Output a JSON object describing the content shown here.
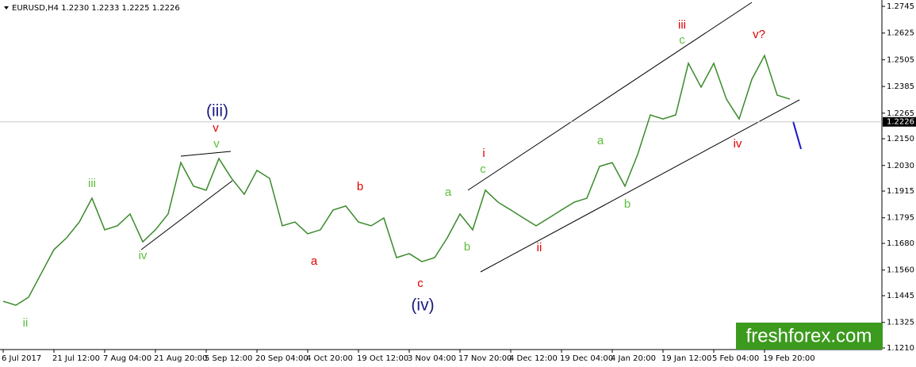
{
  "chart_data": {
    "type": "line",
    "title": "EURUSD,H4  1.2230 1.2233 1.2225 1.2226",
    "categories": [
      "6 Jul 2017",
      null,
      null,
      null,
      "21 Jul 12:00",
      null,
      null,
      null,
      "7 Aug 04:00",
      null,
      null,
      null,
      "21 Aug 20:00",
      null,
      null,
      null,
      "5 Sep 12:00",
      null,
      null,
      null,
      "20 Sep 04:00",
      null,
      null,
      null,
      "4 Oct 20:00",
      null,
      null,
      null,
      "19 Oct 12:00",
      null,
      null,
      null,
      "3 Nov 04:00",
      null,
      null,
      null,
      "17 Nov 20:00",
      null,
      null,
      null,
      "4 Dec 12:00",
      null,
      null,
      null,
      "19 Dec 04:00",
      null,
      null,
      null,
      "4 Jan 20:00",
      null,
      null,
      null,
      "19 Jan 12:00",
      null,
      null,
      null,
      "5 Feb 04:00",
      null,
      null,
      null,
      "19 Feb 20:00",
      null,
      null
    ],
    "values": [
      1.142,
      1.1402,
      1.1438,
      1.1545,
      1.1652,
      1.1705,
      1.1776,
      1.1883,
      1.1741,
      1.1759,
      1.1812,
      1.1687,
      1.1741,
      1.1812,
      1.2043,
      1.1937,
      1.1919,
      1.2061,
      1.1972,
      1.1901,
      1.2008,
      1.1972,
      1.1759,
      1.1776,
      1.1723,
      1.1741,
      1.183,
      1.1848,
      1.1776,
      1.1759,
      1.1794,
      1.1616,
      1.1634,
      1.1598,
      1.1616,
      1.1705,
      1.1812,
      1.1741,
      1.1919,
      1.1865,
      1.183,
      1.1794,
      1.1759,
      1.1794,
      1.183,
      1.1865,
      1.1883,
      1.2026,
      1.2043,
      1.1937,
      1.2079,
      1.2257,
      1.2239,
      1.2257,
      1.2489,
      1.2382,
      1.2489,
      1.2328,
      1.2239,
      1.2417,
      1.2524,
      1.2346,
      1.2328
    ],
    "color": "#3a8a2a",
    "ylim": [
      1.121,
      1.2745
    ],
    "yticks": [
      1.2745,
      1.2625,
      1.2505,
      1.2385,
      1.2265,
      {
        "value": 1.215,
        "label": "1.2150"
      },
      {
        "value": 1.203,
        "label": "1.2030"
      },
      1.1915,
      1.1795,
      {
        "value": 1.168,
        "label": "1.1680"
      },
      {
        "value": 1.156,
        "label": "1.1560"
      },
      1.1445,
      1.1325,
      {
        "value": 1.121,
        "label": "1.1210"
      }
    ],
    "current_price": 1.2226,
    "annotations": [
      {
        "text": "ii",
        "color": "#5bbf3b"
      },
      {
        "text": "iii",
        "color": "#5bbf3b"
      },
      {
        "text": "iv",
        "color": "#5bbf3b"
      },
      {
        "text": "v",
        "color": "#5bbf3b"
      },
      {
        "text": "v",
        "color": "#e00000"
      },
      {
        "text": "(iii)",
        "color": "#1a1a80"
      },
      {
        "text": "a",
        "color": "#e00000"
      },
      {
        "text": "b",
        "color": "#e00000"
      },
      {
        "text": "c",
        "color": "#e00000"
      },
      {
        "text": "(iv)",
        "color": "#1a1a80"
      },
      {
        "text": "a",
        "color": "#5bbf3b"
      },
      {
        "text": "b",
        "color": "#5bbf3b"
      },
      {
        "text": "c",
        "color": "#5bbf3b"
      },
      {
        "text": "i",
        "color": "#e00000"
      },
      {
        "text": "ii",
        "color": "#e00000"
      },
      {
        "text": "a",
        "color": "#5bbf3b"
      },
      {
        "text": "b",
        "color": "#5bbf3b"
      },
      {
        "text": "iii",
        "color": "#e00000"
      },
      {
        "text": "c",
        "color": "#5bbf3b"
      },
      {
        "text": "iv",
        "color": "#e00000"
      },
      {
        "text": "v?",
        "color": "#e00000"
      }
    ],
    "watermark": "freshforex.com"
  }
}
